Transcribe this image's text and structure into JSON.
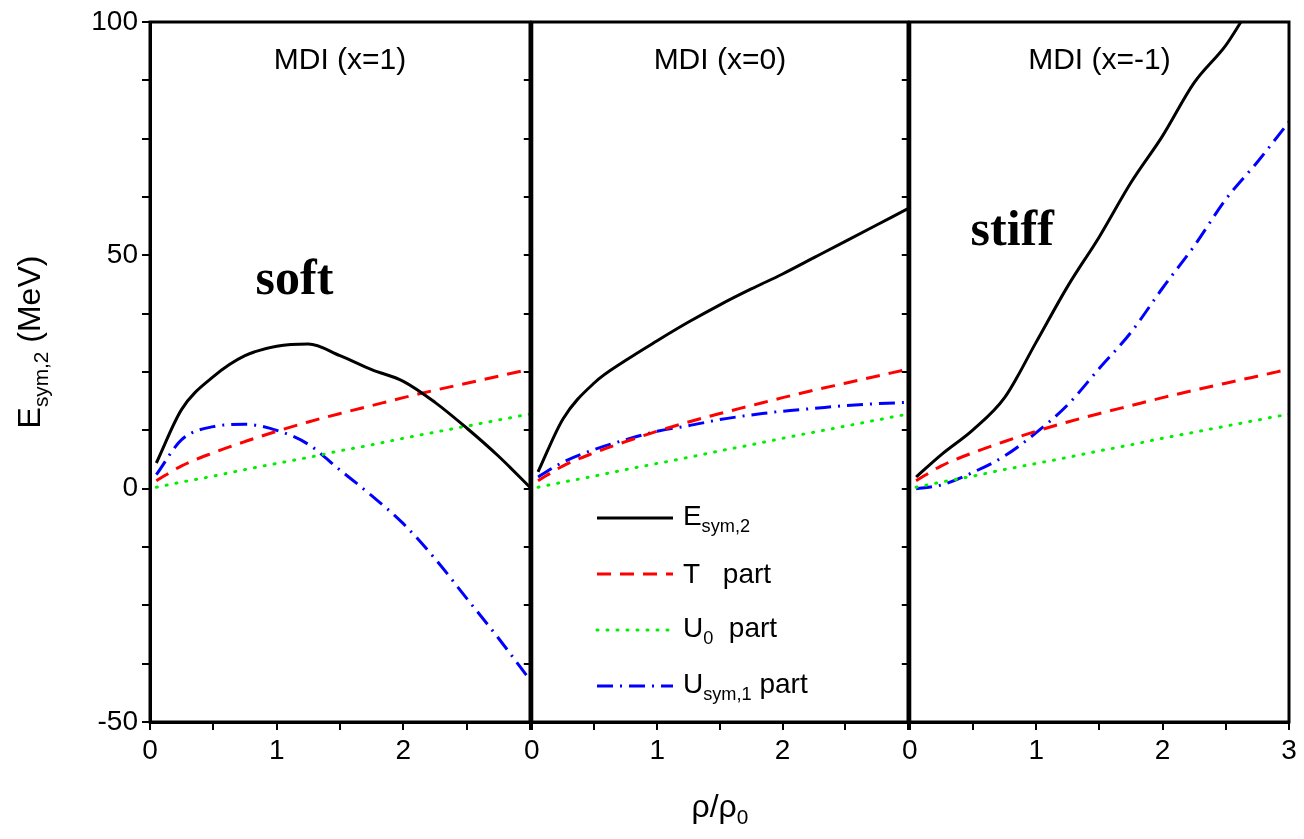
{
  "chart_data": [
    {
      "type": "line",
      "title": "MDI (x=1)",
      "ylabel": "E$_{sym,2}$ (MeV)",
      "x": [
        0.05,
        0.25,
        0.5,
        0.75,
        1,
        1.25,
        1.5,
        1.75,
        2,
        2.25,
        2.5,
        2.75,
        3
      ],
      "xlim": [
        0,
        3
      ],
      "xticks": [
        0,
        {
          "value": 0.5,
          "label": null
        },
        1,
        {
          "value": 1.5,
          "label": null
        },
        2,
        {
          "value": 2.5,
          "label": null
        },
        {
          "value": 3,
          "label": null
        }
      ],
      "ylim": [
        -50,
        100
      ],
      "yticks": [
        -50,
        {
          "value": -37.5,
          "label": null
        },
        {
          "value": -25,
          "label": null
        },
        {
          "value": -12.5,
          "label": null
        },
        0,
        {
          "value": 12.5,
          "label": null
        },
        {
          "value": 25,
          "label": null
        },
        {
          "value": 37.5,
          "label": null
        },
        50,
        {
          "value": 62.5,
          "label": null
        },
        {
          "value": 75,
          "label": null
        },
        {
          "value": 87.5,
          "label": null
        },
        100
      ],
      "grid": false,
      "legend": false,
      "marker": "none",
      "annotations": [
        "soft"
      ],
      "series": [
        {
          "color": "#000000",
          "line_style": "solid",
          "values": [
            5.5,
            17,
            24,
            28.5,
            30.5,
            31,
            28.5,
            25.5,
            23,
            18.5,
            13,
            7,
            0.3
          ]
        },
        {
          "color": "#ff0000",
          "line_style": "dashed",
          "values": [
            1.7,
            4.9,
            7.7,
            10.1,
            12.3,
            14.3,
            16.1,
            17.8,
            19.5,
            21.1,
            22.6,
            24.1,
            25.6
          ]
        },
        {
          "color": "#00ee00",
          "line_style": "dotted",
          "values": [
            0.3,
            1.4,
            2.7,
            4.1,
            5.4,
            6.7,
            8.1,
            9.4,
            10.8,
            12.1,
            13.4,
            14.7,
            16
          ]
        },
        {
          "color": "#0000ff",
          "line_style": "dashdot",
          "values": [
            3,
            10.5,
            13.3,
            13.8,
            12.5,
            9.5,
            4,
            -1.5,
            -7.5,
            -15,
            -23.5,
            -32,
            -41
          ]
        }
      ]
    },
    {
      "type": "line",
      "title": "MDI (x=0)",
      "xlabel": "ρ/ρ$_{0}$",
      "x": [
        0.05,
        0.25,
        0.5,
        0.75,
        1,
        1.25,
        1.5,
        1.75,
        2,
        2.25,
        2.5,
        2.75,
        3
      ],
      "xlim": [
        0,
        3
      ],
      "xticks": [
        0,
        {
          "value": 0.5,
          "label": null
        },
        1,
        {
          "value": 1.5,
          "label": null
        },
        2,
        {
          "value": 2.5,
          "label": null
        },
        {
          "value": 3,
          "label": null
        }
      ],
      "ylim": [
        -50,
        100
      ],
      "yticks": [
        -50,
        {
          "value": -37.5,
          "label": null
        },
        {
          "value": -25,
          "label": null
        },
        {
          "value": -12.5,
          "label": null
        },
        0,
        {
          "value": 12.5,
          "label": null
        },
        {
          "value": 25,
          "label": null
        },
        {
          "value": 37.5,
          "label": null
        },
        50,
        {
          "value": 62.5,
          "label": null
        },
        {
          "value": 75,
          "label": null
        },
        {
          "value": 87.5,
          "label": null
        },
        100
      ],
      "tick_labels": "x",
      "grid": false,
      "legend": "bottom",
      "marker": "none",
      "series": [
        {
          "name": "E$_{sym,2}$",
          "color": "#000000",
          "line_style": "solid",
          "values": [
            3.6,
            15,
            22.7,
            27.5,
            31.7,
            35.7,
            39.4,
            42.8,
            46,
            49.5,
            53,
            56.5,
            60
          ]
        },
        {
          "name": "T   part",
          "color": "#ff0000",
          "line_style": "dashed",
          "values": [
            1.7,
            4.9,
            7.7,
            10.1,
            12.3,
            14.3,
            16.1,
            17.8,
            19.5,
            21.1,
            22.6,
            24.1,
            25.6
          ]
        },
        {
          "name": "U$_{0}$  part",
          "color": "#00ee00",
          "line_style": "dotted",
          "values": [
            0.3,
            1.4,
            2.7,
            4.1,
            5.4,
            6.7,
            8.1,
            9.4,
            10.8,
            12.1,
            13.4,
            14.7,
            16
          ]
        },
        {
          "name": "U$_{sym,1}$ part",
          "color": "#0000ff",
          "line_style": "dashdot",
          "values": [
            2.5,
            5.7,
            8.4,
            10.5,
            12.3,
            13.5,
            14.8,
            15.8,
            16.6,
            17.2,
            17.8,
            18.2,
            18.5
          ]
        }
      ]
    },
    {
      "type": "line",
      "title": "MDI (x=-1)",
      "x": [
        0.05,
        0.25,
        0.5,
        0.75,
        1,
        1.25,
        1.5,
        1.75,
        2,
        2.25,
        2.5,
        2.75,
        3
      ],
      "xlim": [
        0,
        3
      ],
      "xticks": [
        0,
        {
          "value": 0.5,
          "label": null
        },
        1,
        {
          "value": 1.5,
          "label": null
        },
        2,
        {
          "value": 2.5,
          "label": null
        },
        3
      ],
      "ylim": [
        -50,
        100
      ],
      "yticks": [
        -50,
        {
          "value": -37.5,
          "label": null
        },
        {
          "value": -25,
          "label": null
        },
        {
          "value": -12.5,
          "label": null
        },
        0,
        {
          "value": 12.5,
          "label": null
        },
        {
          "value": 25,
          "label": null
        },
        {
          "value": 37.5,
          "label": null
        },
        50,
        {
          "value": 62.5,
          "label": null
        },
        {
          "value": 75,
          "label": null
        },
        {
          "value": 87.5,
          "label": null
        },
        100
      ],
      "tick_labels": "x",
      "grid": false,
      "legend": false,
      "marker": "none",
      "annotations": [
        "stiff"
      ],
      "series": [
        {
          "color": "#000000",
          "line_style": "solid",
          "x": [
            0.05,
            0.25,
            0.5,
            0.75,
            1,
            1.25,
            1.5,
            1.75,
            2,
            2.25,
            2.5,
            2.62
          ],
          "values": [
            2.5,
            7.3,
            12.6,
            19.5,
            31.4,
            43.4,
            54,
            65.6,
            75.6,
            87,
            95,
            100
          ]
        },
        {
          "color": "#ff0000",
          "line_style": "dashed",
          "values": [
            1.7,
            4.9,
            7.7,
            10.1,
            12.3,
            14.3,
            16.1,
            17.8,
            19.5,
            21.1,
            22.6,
            24.1,
            25.6
          ]
        },
        {
          "color": "#00ee00",
          "line_style": "dotted",
          "values": [
            0.3,
            1.4,
            2.7,
            4.1,
            5.4,
            6.7,
            8.1,
            9.4,
            10.8,
            12.1,
            13.4,
            14.7,
            16
          ]
        },
        {
          "color": "#0000ff",
          "line_style": "dashdot",
          "values": [
            0,
            0.8,
            3.5,
            7,
            12,
            18,
            25.8,
            33.5,
            43,
            52,
            62,
            70,
            78.6
          ]
        }
      ]
    }
  ]
}
